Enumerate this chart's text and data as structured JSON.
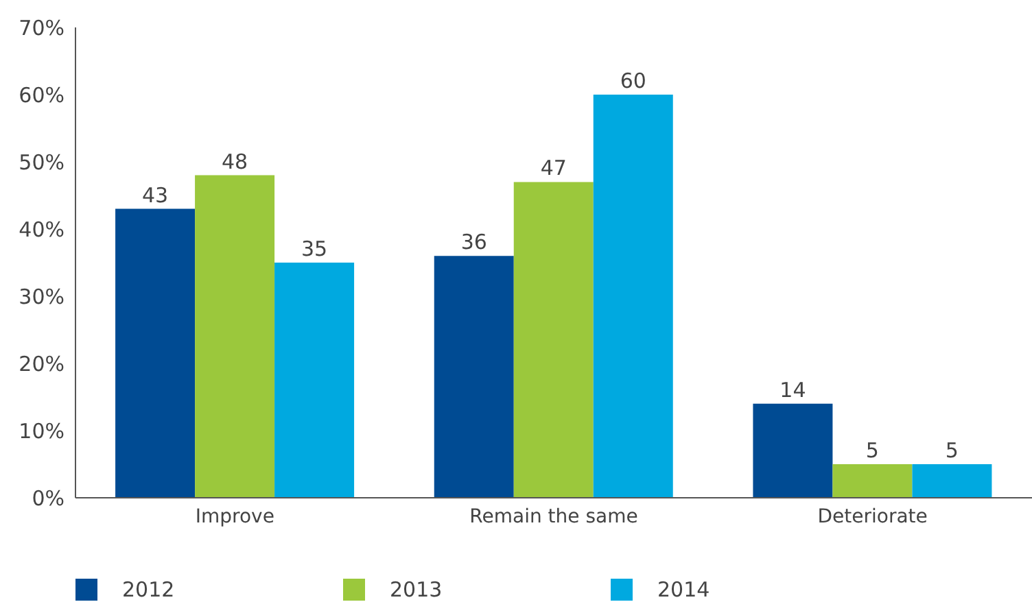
{
  "chart_data": {
    "type": "bar",
    "categories": [
      "Improve",
      "Remain the same",
      "Deteriorate"
    ],
    "series": [
      {
        "name": "2012",
        "color": "#004b93",
        "values": [
          43,
          36,
          14
        ]
      },
      {
        "name": "2013",
        "color": "#9bc83c",
        "values": [
          48,
          47,
          5
        ]
      },
      {
        "name": "2014",
        "color": "#00a9e0",
        "values": [
          35,
          60,
          5
        ]
      }
    ],
    "ylim": [
      0,
      70
    ],
    "yticks": [
      {
        "value": 0,
        "label": "0%"
      },
      {
        "value": 10,
        "label": "10%"
      },
      {
        "value": 20,
        "label": "20%"
      },
      {
        "value": 30,
        "label": "30%"
      },
      {
        "value": 40,
        "label": "40%"
      },
      {
        "value": 50,
        "label": "50%"
      },
      {
        "value": 60,
        "label": "60%"
      },
      {
        "value": 70,
        "label": "70%"
      }
    ],
    "data_labels": true,
    "grid": false,
    "legend": "bottom left"
  }
}
